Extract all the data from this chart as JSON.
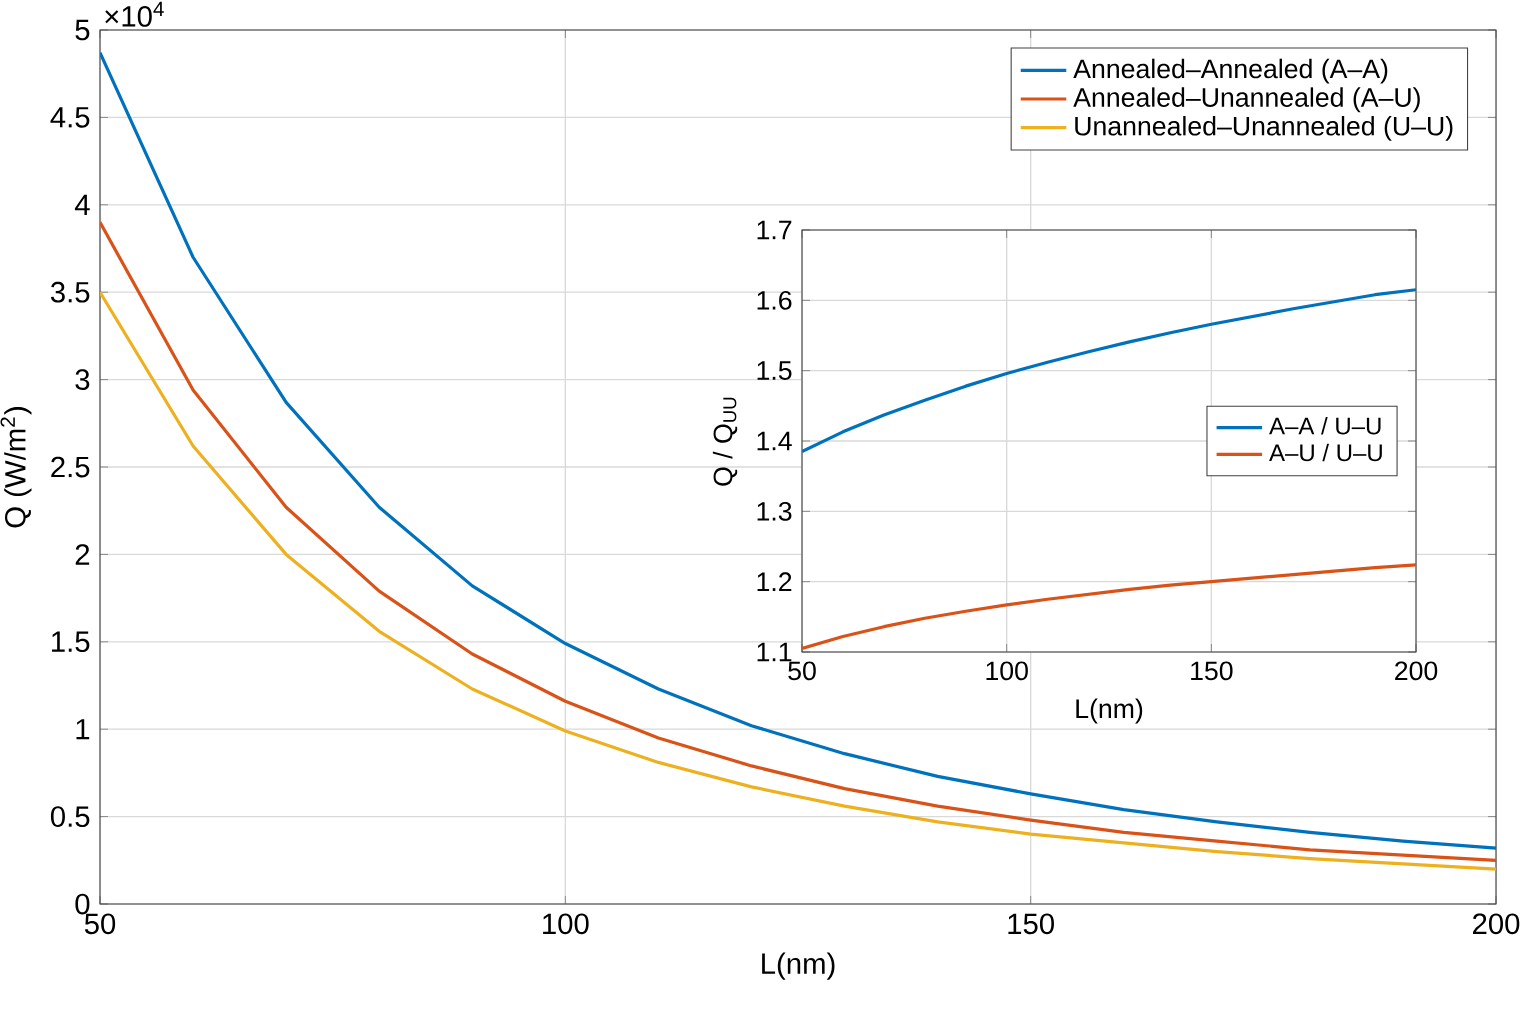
{
  "chart_data": [
    {
      "type": "line",
      "xlabel": "L(nm)",
      "ylabel": "Q (W/m$^{2}$)",
      "annotations": [
        "×10$^{4}$"
      ],
      "x": [
        50,
        60,
        70,
        80,
        90,
        100,
        110,
        120,
        130,
        140,
        150,
        160,
        170,
        180,
        190,
        200
      ],
      "series": [
        {
          "name": "Annealed–Annealed (A–A)",
          "color": "#0072bd",
          "values": [
            4.87,
            3.7,
            2.87,
            2.27,
            1.82,
            1.49,
            1.23,
            1.02,
            0.86,
            0.73,
            0.63,
            0.54,
            0.47,
            0.41,
            0.36,
            0.32
          ]
        },
        {
          "name": "Annealed–Unannealed (A–U)",
          "color": "#d95319",
          "values": [
            3.9,
            2.94,
            2.27,
            1.79,
            1.43,
            1.16,
            0.95,
            0.79,
            0.66,
            0.56,
            0.48,
            0.41,
            0.36,
            0.31,
            0.28,
            0.25
          ]
        },
        {
          "name": "Unannealed–Unannealed (U–U)",
          "color": "#edb120",
          "values": [
            3.5,
            2.62,
            2.0,
            1.56,
            1.23,
            0.99,
            0.81,
            0.67,
            0.56,
            0.47,
            0.4,
            0.35,
            0.3,
            0.26,
            0.23,
            0.2
          ]
        }
      ],
      "xlim": [
        50,
        200
      ],
      "xticks": [
        50,
        100,
        150,
        200
      ],
      "ylim": [
        0,
        5
      ],
      "yticks": [
        0,
        0.5,
        1,
        1.5,
        2,
        2.5,
        3,
        3.5,
        4,
        4.5,
        5
      ],
      "grid": true,
      "legend": "top right",
      "marker": "none",
      "line_style": "solid"
    },
    {
      "type": "line",
      "xlabel": "L(nm)",
      "ylabel": "Q / Q$_{UU}$",
      "x": [
        50,
        60,
        70,
        80,
        90,
        100,
        110,
        120,
        130,
        140,
        150,
        160,
        170,
        180,
        190,
        200
      ],
      "series": [
        {
          "name": "A–A / U–U",
          "color": "#0072bd",
          "values": [
            1.385,
            1.413,
            1.437,
            1.458,
            1.478,
            1.496,
            1.512,
            1.527,
            1.541,
            1.554,
            1.566,
            1.577,
            1.588,
            1.598,
            1.608,
            1.615
          ]
        },
        {
          "name": "A–U / U–U",
          "color": "#d95319",
          "values": [
            1.105,
            1.122,
            1.136,
            1.148,
            1.158,
            1.167,
            1.175,
            1.182,
            1.189,
            1.195,
            1.2,
            1.205,
            1.21,
            1.215,
            1.22,
            1.224
          ]
        }
      ],
      "xlim": [
        50,
        200
      ],
      "xticks": [
        50,
        100,
        150,
        200
      ],
      "ylim": [
        1.1,
        1.7
      ],
      "yticks": [
        1.1,
        1.2,
        1.3,
        1.4,
        1.5,
        1.6,
        1.7
      ],
      "grid": true,
      "legend": "right",
      "marker": "none",
      "line_style": "solid"
    }
  ]
}
